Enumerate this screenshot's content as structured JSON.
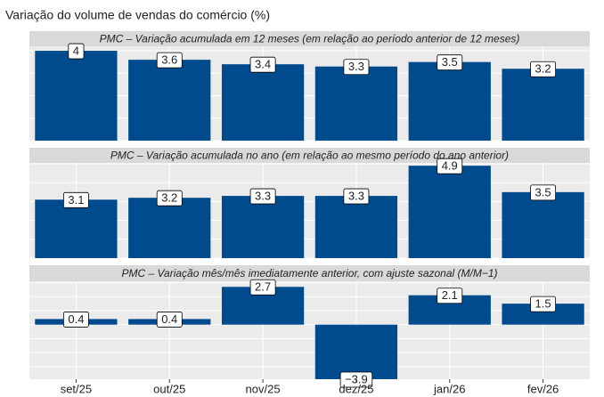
{
  "title": "Variação do volume de vendas do comércio (%)",
  "categories": [
    "set/25",
    "out/25",
    "nov/25",
    "dez/25",
    "jan/26",
    "fev/26"
  ],
  "chart_data": [
    {
      "type": "bar",
      "title": "PMC – Variação acumulada em 12 meses (em relação ao período anterior de 12 meses)",
      "values": [
        4,
        3.6,
        3.4,
        3.3,
        3.5,
        3.2
      ],
      "color": "#004b8d",
      "ylim": [
        0,
        4.2
      ],
      "yticks": [
        0,
        1,
        2,
        3,
        4
      ],
      "grid": true
    },
    {
      "type": "bar",
      "title": "PMC – Variação acumulada no ano (em relação ao mesmo período do ano anterior)",
      "values": [
        3.1,
        3.2,
        3.3,
        3.3,
        4.9,
        3.5
      ],
      "color": "#004b8d",
      "ylim": [
        0,
        5.05
      ],
      "yticks": [
        0,
        1,
        2,
        3,
        4,
        5
      ],
      "grid": true
    },
    {
      "type": "bar",
      "title": "PMC – Variação mês/mês imediatamente anterior, com ajuste sazonal (M/M−1)",
      "values": [
        0.4,
        0.4,
        2.7,
        -3.9,
        2.1,
        1.5
      ],
      "value_labels": [
        "0.4",
        "0.4",
        "2.7",
        "−3.9",
        "2.1",
        "1.5"
      ],
      "color": "#004b8d",
      "ylim": [
        -3.9,
        3.1
      ],
      "yticks": [
        -3,
        -2,
        -1,
        0,
        1,
        2,
        3
      ],
      "grid": true
    }
  ]
}
